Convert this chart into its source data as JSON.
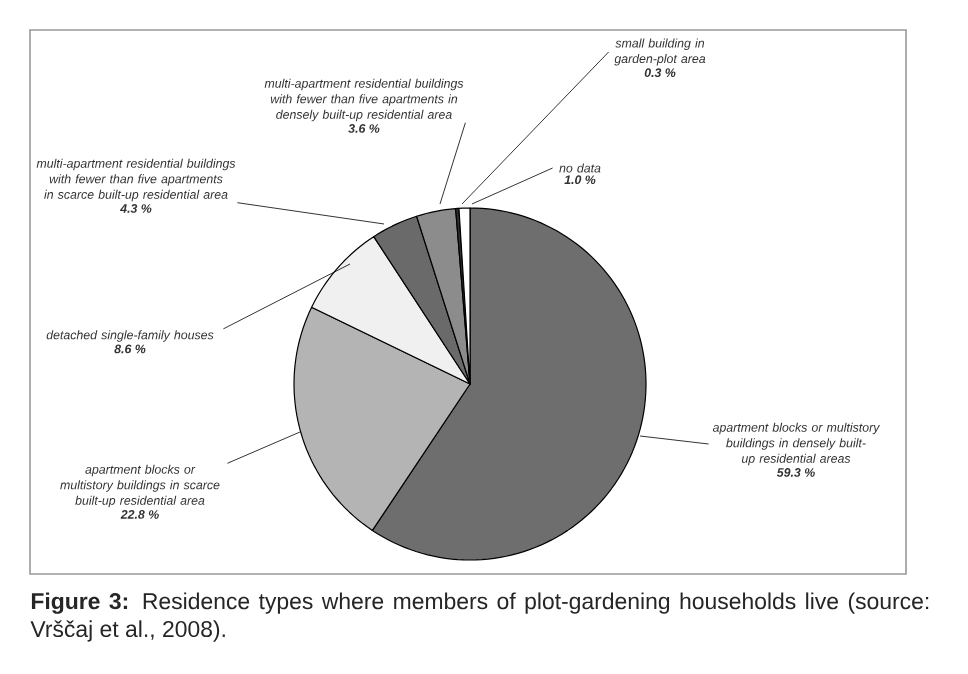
{
  "chart_data": {
    "type": "pie",
    "categories": [
      "apartment blocks or multistory buildings in densely built-up residential areas",
      "apartment blocks or multistory buildings in scarce built-up residential area",
      "detached single-family houses",
      "multi-apartment residential buildings with fewer than five apartments in scarce built-up residential area",
      "multi-apartment residential buildings with fewer than five apartments in densely built-up residential area",
      "small building in garden-plot area",
      "no data"
    ],
    "values": [
      59.3,
      22.8,
      8.6,
      4.3,
      3.6,
      0.3,
      1.0
    ],
    "value_labels": [
      "59.3 %",
      "22.8 %",
      "8.6 %",
      "4.3 %",
      "3.6 %",
      "0.3 %",
      "1.0 %"
    ],
    "colors": [
      "#6e6e6e",
      "#b4b4b4",
      "#f0f0f0",
      "#6a6a6a",
      "#8c8c8c",
      "#303030",
      "#ffffff"
    ],
    "annotations": [
      "**Figure 3:** Residence types where members of plot-gardening households live (source: Vrščaj et al., 2008)."
    ]
  }
}
